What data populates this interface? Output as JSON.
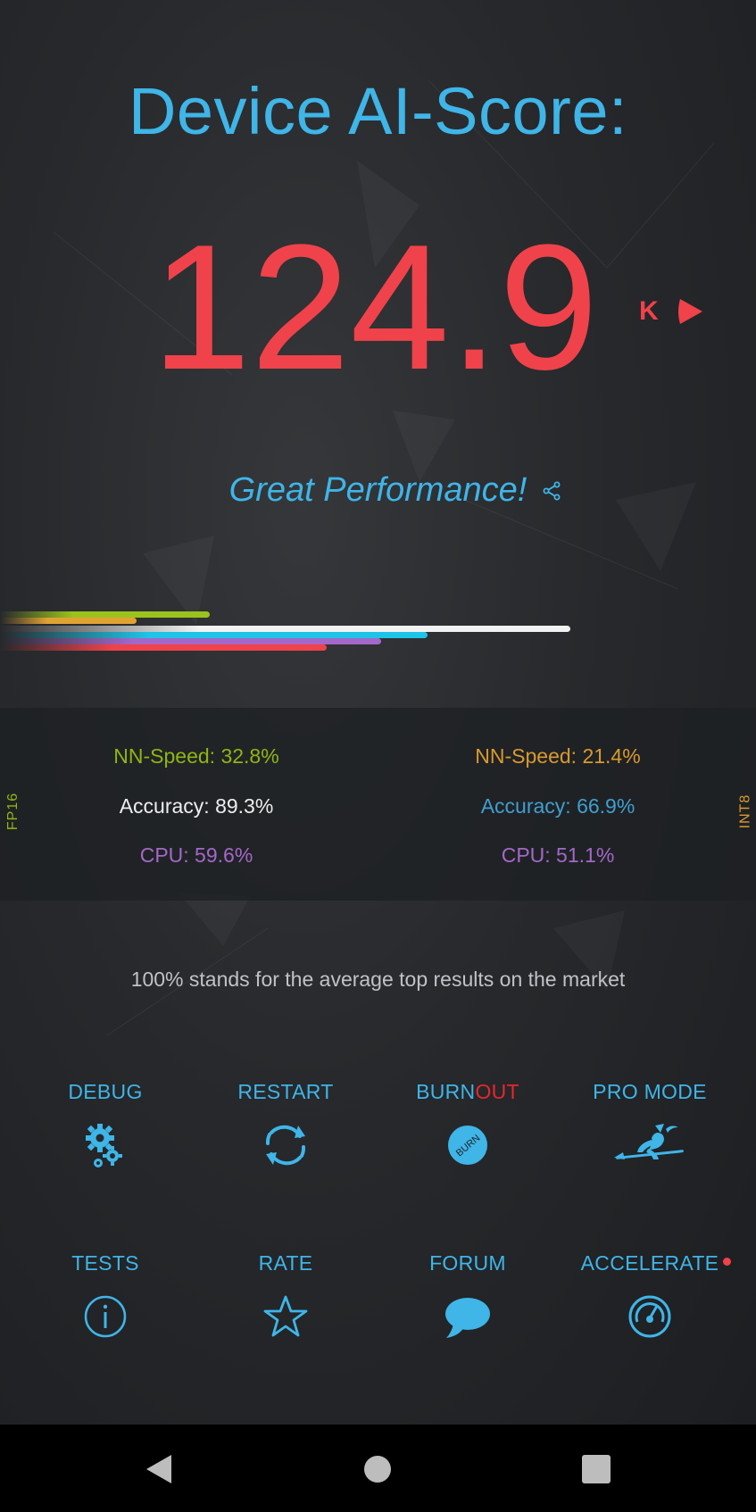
{
  "header": {
    "title": "Device AI-Score:"
  },
  "score": {
    "value": "124.9",
    "unit": "K"
  },
  "performance": {
    "label": "Great Performance!"
  },
  "colors": {
    "accent": "#3fb5e8",
    "score": "#f0424a",
    "fp16": "#8fb514",
    "int8": "#d99a2e",
    "cpu": "#a368c9",
    "accuracy_int8": "#3f9fd0"
  },
  "progress_bars": [
    {
      "name": "fp16-nn-speed",
      "value_pct": 32.8,
      "color": "#9bc31c"
    },
    {
      "name": "int8-nn-speed",
      "value_pct": 21.4,
      "color": "#e0a332"
    },
    {
      "name": "fp16-accuracy",
      "value_pct": 89.3,
      "color": "#f2f2f2"
    },
    {
      "name": "int8-accuracy",
      "value_pct": 66.9,
      "color": "#1ec4e8"
    },
    {
      "name": "fp16-cpu",
      "value_pct": 59.6,
      "color": "#a368c9"
    },
    {
      "name": "int8-cpu",
      "value_pct": 51.1,
      "color": "#f0424a"
    }
  ],
  "stats": {
    "fp16": {
      "side_label": "FP16",
      "nn_speed": "NN-Speed:  32.8%",
      "accuracy": "Accuracy:  89.3%",
      "cpu": "CPU:  59.6%"
    },
    "int8": {
      "side_label": "INT8",
      "nn_speed": "NN-Speed:  21.4%",
      "accuracy": "Accuracy:  66.9%",
      "cpu": "CPU:  51.1%"
    }
  },
  "footnote": "100% stands for the average top results on the market",
  "buttons": {
    "debug": {
      "label": "DEBUG",
      "icon": "gears-icon"
    },
    "restart": {
      "label": "RESTART",
      "icon": "refresh-icon"
    },
    "burnout": {
      "label_a": "BURN",
      "label_b": "OUT",
      "icon_text": "BURN",
      "icon": "burn-icon"
    },
    "pro_mode": {
      "label": "PRO MODE",
      "icon": "witch-icon"
    },
    "tests": {
      "label": "TESTS",
      "icon": "info-icon"
    },
    "rate": {
      "label": "RATE",
      "icon": "star-icon"
    },
    "forum": {
      "label": "FORUM",
      "icon": "chat-bubble-icon"
    },
    "accelerate": {
      "label": "ACCELERATE",
      "icon": "speedometer-icon"
    }
  },
  "nav": {
    "back": "back-icon",
    "home": "home-icon",
    "recents": "recents-icon"
  }
}
